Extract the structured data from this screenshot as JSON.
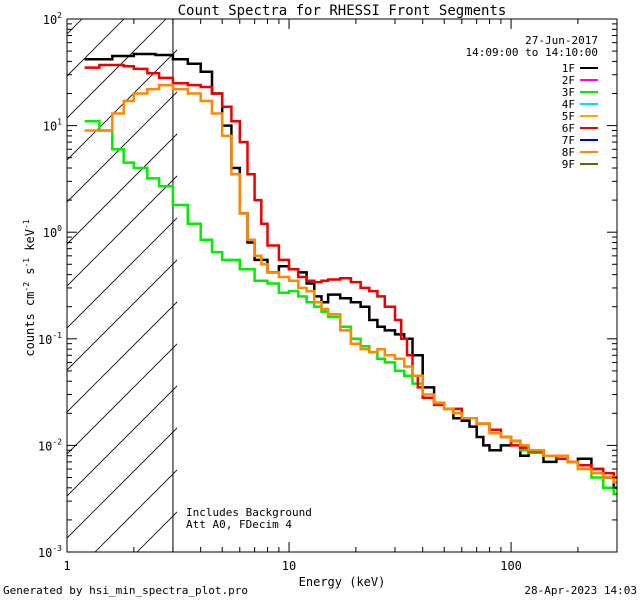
{
  "footer": {
    "generated": "Generated by hsi_min_spectra_plot.pro",
    "timestamp": "28-Apr-2023 14:03"
  },
  "chart_data": {
    "type": "line",
    "title": "Count Spectra for RHESSI Front Segments",
    "xlabel": "Energy (keV)",
    "ylabel_parts": {
      "a": "counts cm",
      "e1": "-2",
      "b": " s",
      "e2": "-1",
      "c": " keV",
      "e3": "-1"
    },
    "xscale": "log",
    "yscale": "log",
    "xlim": [
      1,
      300
    ],
    "ylim": [
      0.001,
      100
    ],
    "x_ticks": [
      {
        "value": 1,
        "label": "1"
      },
      {
        "value": 10,
        "label": "10"
      },
      {
        "value": 100,
        "label": "100"
      }
    ],
    "y_ticks": [
      {
        "value": 0.001,
        "base": "10",
        "exp": "-3"
      },
      {
        "value": 0.01,
        "base": "10",
        "exp": "-2"
      },
      {
        "value": 0.1,
        "base": "10",
        "exp": "-1"
      },
      {
        "value": 1,
        "base": "10",
        "exp": "0"
      },
      {
        "value": 10,
        "base": "10",
        "exp": "1"
      },
      {
        "value": 100,
        "base": "10",
        "exp": "2"
      }
    ],
    "date": "27-Jun-2017",
    "time_range": "14:09:00 to 14:10:00",
    "annotations": [
      "Includes Background",
      "Att A0, FDecim 4"
    ],
    "hatched_region": {
      "x_min": 1,
      "x_max": 3
    },
    "legend_position": "top-right",
    "legend": [
      {
        "name": "1F",
        "color": "#000000"
      },
      {
        "name": "2F",
        "color": "#ff00ff"
      },
      {
        "name": "3F",
        "color": "#00ee00"
      },
      {
        "name": "4F",
        "color": "#00ddff"
      },
      {
        "name": "5F",
        "color": "#ffaa00"
      },
      {
        "name": "6F",
        "color": "#ee0000"
      },
      {
        "name": "7F",
        "color": "#0000cc"
      },
      {
        "name": "8F",
        "color": "#ff8800"
      },
      {
        "name": "9F",
        "color": "#666600"
      }
    ],
    "series": [
      {
        "name": "1F",
        "color": "#000000",
        "x": [
          1.2,
          1.6,
          2.0,
          2.5,
          3.0,
          3.5,
          4.0,
          4.5,
          5.0,
          5.5,
          6.0,
          6.5,
          7.0,
          8.0,
          9.0,
          10.0,
          11.0,
          12.0,
          13.0,
          14.0,
          15.0,
          17.0,
          19.0,
          21.0,
          23.0,
          25.0,
          27.0,
          30.0,
          33.0,
          36.0,
          40.0,
          45.0,
          50.0,
          55.0,
          60.0,
          65.0,
          70.0,
          75.0,
          80.0,
          90.0,
          100.0,
          110.0,
          120.0,
          140.0,
          160.0,
          180.0,
          200.0,
          230.0,
          260.0,
          290.0
        ],
        "y": [
          42,
          45,
          47,
          46,
          42,
          38,
          32,
          20,
          10,
          4.0,
          1.5,
          0.8,
          0.55,
          0.42,
          0.48,
          0.45,
          0.42,
          0.33,
          0.25,
          0.22,
          0.26,
          0.24,
          0.22,
          0.2,
          0.15,
          0.13,
          0.12,
          0.11,
          0.1,
          0.07,
          0.035,
          0.025,
          0.022,
          0.018,
          0.017,
          0.015,
          0.012,
          0.01,
          0.009,
          0.01,
          0.011,
          0.008,
          0.009,
          0.007,
          0.008,
          0.007,
          0.0075,
          0.006,
          0.005,
          0.004
        ]
      },
      {
        "name": "3F",
        "color": "#00ee00",
        "x": [
          1.2,
          1.4,
          1.6,
          1.8,
          2.0,
          2.3,
          2.6,
          3.0,
          3.5,
          4.0,
          4.5,
          5.0,
          6.0,
          7.0,
          8.0,
          9.0,
          10.0,
          11.0,
          12.0,
          13.0,
          14.0,
          15.0,
          17.0,
          19.0,
          21.0,
          23.0,
          25.0,
          27.0,
          30.0,
          33.0,
          36.0,
          40.0,
          45.0,
          50.0,
          60.0,
          70.0,
          80.0,
          90.0,
          100.0,
          110.0,
          120.0,
          140.0,
          160.0,
          180.0,
          200.0,
          230.0,
          260.0,
          290.0
        ],
        "y": [
          11,
          9,
          6,
          4.5,
          4.0,
          3.2,
          2.7,
          1.8,
          1.2,
          0.85,
          0.65,
          0.55,
          0.45,
          0.35,
          0.33,
          0.27,
          0.28,
          0.25,
          0.22,
          0.2,
          0.18,
          0.16,
          0.13,
          0.1,
          0.085,
          0.075,
          0.065,
          0.06,
          0.05,
          0.045,
          0.038,
          0.028,
          0.024,
          0.022,
          0.018,
          0.016,
          0.014,
          0.012,
          0.011,
          0.009,
          0.0085,
          0.008,
          0.0075,
          0.007,
          0.006,
          0.005,
          0.004,
          0.0035
        ]
      },
      {
        "name": "6F",
        "color": "#ee0000",
        "x": [
          1.2,
          1.4,
          1.6,
          1.8,
          2.0,
          2.3,
          2.6,
          3.0,
          3.5,
          4.0,
          4.5,
          5.0,
          5.5,
          6.0,
          6.5,
          7.0,
          7.5,
          8.0,
          9.0,
          10.0,
          11.0,
          12.0,
          13.0,
          14.0,
          15.0,
          17.0,
          19.0,
          21.0,
          23.0,
          25.0,
          27.0,
          30.0,
          32.0,
          34.0,
          36.0,
          38.0,
          40.0,
          45.0,
          50.0,
          60.0,
          70.0,
          80.0,
          90.0,
          100.0,
          110.0,
          120.0,
          140.0,
          160.0,
          180.0,
          200.0,
          230.0,
          260.0,
          290.0
        ],
        "y": [
          35,
          37,
          37,
          36,
          34,
          31,
          28,
          25,
          24,
          23,
          20,
          15,
          11,
          7,
          3.5,
          2.0,
          1.2,
          0.75,
          0.55,
          0.45,
          0.38,
          0.35,
          0.34,
          0.35,
          0.36,
          0.37,
          0.34,
          0.3,
          0.28,
          0.25,
          0.2,
          0.15,
          0.1,
          0.07,
          0.045,
          0.035,
          0.028,
          0.024,
          0.022,
          0.018,
          0.016,
          0.014,
          0.012,
          0.01,
          0.0095,
          0.0088,
          0.008,
          0.0075,
          0.007,
          0.0065,
          0.006,
          0.0055,
          0.005
        ]
      },
      {
        "name": "8F",
        "color": "#ff8800",
        "x": [
          1.2,
          1.4,
          1.6,
          1.8,
          2.0,
          2.3,
          2.6,
          3.0,
          3.5,
          4.0,
          4.5,
          5.0,
          5.5,
          6.0,
          6.5,
          7.0,
          7.5,
          8.0,
          9.0,
          10.0,
          11.0,
          12.0,
          13.0,
          14.0,
          15.0,
          17.0,
          19.0,
          21.0,
          23.0,
          25.0,
          27.0,
          30.0,
          33.0,
          36.0,
          40.0,
          45.0,
          50.0,
          55.0,
          60.0,
          70.0,
          80.0,
          90.0,
          100.0,
          110.0,
          120.0,
          140.0,
          160.0,
          180.0,
          200.0,
          230.0,
          260.0,
          290.0
        ],
        "y": [
          9,
          9,
          13,
          17,
          20,
          22,
          24,
          22,
          20,
          17,
          13,
          8,
          3.5,
          1.5,
          0.85,
          0.6,
          0.5,
          0.42,
          0.38,
          0.35,
          0.3,
          0.28,
          0.22,
          0.19,
          0.17,
          0.12,
          0.09,
          0.08,
          0.075,
          0.08,
          0.07,
          0.065,
          0.055,
          0.045,
          0.03,
          0.025,
          0.022,
          0.02,
          0.018,
          0.016,
          0.013,
          0.012,
          0.011,
          0.01,
          0.009,
          0.008,
          0.008,
          0.007,
          0.006,
          0.0055,
          0.005,
          0.0045
        ]
      }
    ]
  }
}
